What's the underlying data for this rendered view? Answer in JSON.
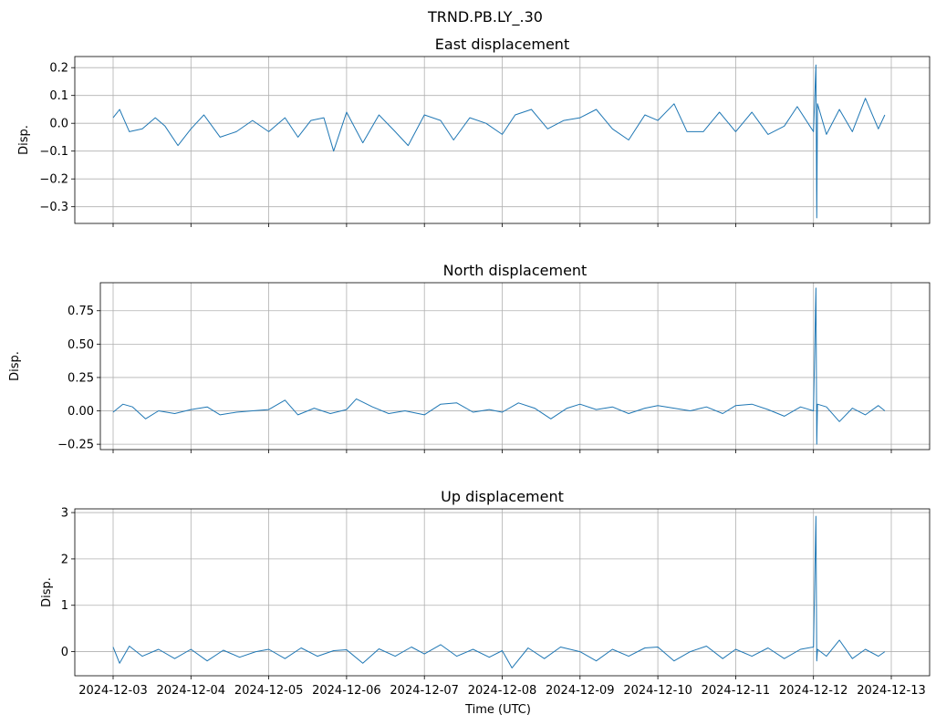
{
  "figure": {
    "suptitle": "TRND.PB.LY_.30",
    "xlabel": "Time (UTC)"
  },
  "colors": {
    "series": "#1f77b4",
    "grid": "#b0b0b0"
  },
  "chart_data": [
    {
      "type": "line",
      "title": "East displacement",
      "ylabel": "Disp.",
      "grid": true,
      "sharex": true,
      "x_tick_labels": [],
      "xlim": [
        "2024-12-03",
        "2024-12-13"
      ],
      "ylim": [
        -0.36,
        0.24
      ],
      "y_ticks": [
        0.2,
        0.1,
        0.0,
        -0.1,
        -0.2,
        -0.3
      ],
      "y_tick_labels": [
        "0.2",
        "0.1",
        "0.0",
        "−0.1",
        "−0.2",
        "−0.3"
      ],
      "series": [
        {
          "x": [
            "2024-12-03 00:00",
            "2024-12-03 02:00",
            "2024-12-03 05:00",
            "2024-12-03 09:00",
            "2024-12-03 13:00",
            "2024-12-03 16:00",
            "2024-12-03 20:00",
            "2024-12-04 00:00",
            "2024-12-04 04:00",
            "2024-12-04 09:00",
            "2024-12-04 14:00",
            "2024-12-04 19:00",
            "2024-12-05 00:00",
            "2024-12-05 05:00",
            "2024-12-05 09:00",
            "2024-12-05 13:00",
            "2024-12-05 17:00",
            "2024-12-05 20:00",
            "2024-12-06 00:00",
            "2024-12-06 05:00",
            "2024-12-06 10:00",
            "2024-12-06 15:00",
            "2024-12-06 19:00",
            "2024-12-07 00:00",
            "2024-12-07 05:00",
            "2024-12-07 09:00",
            "2024-12-07 14:00",
            "2024-12-07 19:00",
            "2024-12-08 00:00",
            "2024-12-08 04:00",
            "2024-12-08 09:00",
            "2024-12-08 14:00",
            "2024-12-08 19:00",
            "2024-12-09 00:00",
            "2024-12-09 05:00",
            "2024-12-09 10:00",
            "2024-12-09 15:00",
            "2024-12-09 20:00",
            "2024-12-10 00:00",
            "2024-12-10 05:00",
            "2024-12-10 09:00",
            "2024-12-10 14:00",
            "2024-12-10 19:00",
            "2024-12-11 00:00",
            "2024-12-11 05:00",
            "2024-12-11 10:00",
            "2024-12-11 15:00",
            "2024-12-11 19:00",
            "2024-12-12 00:00",
            "2024-12-12 00:45",
            "2024-12-12 01:00",
            "2024-12-12 01:15",
            "2024-12-12 04:00",
            "2024-12-12 08:00",
            "2024-12-12 12:00",
            "2024-12-12 16:00",
            "2024-12-12 20:00",
            "2024-12-12 22:00"
          ],
          "y": [
            0.02,
            0.05,
            -0.03,
            -0.02,
            0.02,
            -0.01,
            -0.08,
            -0.02,
            0.03,
            -0.05,
            -0.03,
            0.01,
            -0.03,
            0.02,
            -0.05,
            0.01,
            0.02,
            -0.1,
            0.04,
            -0.07,
            0.03,
            -0.03,
            -0.08,
            0.03,
            0.01,
            -0.06,
            0.02,
            0.0,
            -0.04,
            0.03,
            0.05,
            -0.02,
            0.01,
            0.02,
            0.05,
            -0.02,
            -0.06,
            0.03,
            0.01,
            0.07,
            -0.03,
            -0.03,
            0.04,
            -0.03,
            0.04,
            -0.04,
            -0.01,
            0.06,
            -0.03,
            0.21,
            -0.34,
            0.07,
            -0.04,
            0.05,
            -0.03,
            0.09,
            -0.02,
            0.03
          ]
        }
      ]
    },
    {
      "type": "line",
      "title": "North displacement",
      "ylabel": "Disp.",
      "grid": true,
      "sharex": true,
      "x_tick_labels": [],
      "xlim": [
        "2024-12-03",
        "2024-12-13"
      ],
      "ylim": [
        -0.29,
        0.96
      ],
      "y_ticks": [
        0.75,
        0.5,
        0.25,
        0.0,
        -0.25
      ],
      "y_tick_labels": [
        "0.75",
        "0.50",
        "0.25",
        "0.00",
        "−0.25"
      ],
      "series": [
        {
          "x": [
            "2024-12-03 00:00",
            "2024-12-03 03:00",
            "2024-12-03 06:00",
            "2024-12-03 10:00",
            "2024-12-03 14:00",
            "2024-12-03 19:00",
            "2024-12-04 00:00",
            "2024-12-04 05:00",
            "2024-12-04 09:00",
            "2024-12-04 14:00",
            "2024-12-04 19:00",
            "2024-12-05 00:00",
            "2024-12-05 05:00",
            "2024-12-05 09:00",
            "2024-12-05 14:00",
            "2024-12-05 19:00",
            "2024-12-06 00:00",
            "2024-12-06 03:00",
            "2024-12-06 08:00",
            "2024-12-06 13:00",
            "2024-12-06 18:00",
            "2024-12-07 00:00",
            "2024-12-07 05:00",
            "2024-12-07 10:00",
            "2024-12-07 15:00",
            "2024-12-07 20:00",
            "2024-12-08 00:00",
            "2024-12-08 05:00",
            "2024-12-08 10:00",
            "2024-12-08 15:00",
            "2024-12-08 20:00",
            "2024-12-09 00:00",
            "2024-12-09 05:00",
            "2024-12-09 10:00",
            "2024-12-09 15:00",
            "2024-12-09 20:00",
            "2024-12-10 00:00",
            "2024-12-10 05:00",
            "2024-12-10 10:00",
            "2024-12-10 15:00",
            "2024-12-10 20:00",
            "2024-12-11 00:00",
            "2024-12-11 05:00",
            "2024-12-11 10:00",
            "2024-12-11 15:00",
            "2024-12-11 20:00",
            "2024-12-12 00:00",
            "2024-12-12 00:45",
            "2024-12-12 01:00",
            "2024-12-12 01:15",
            "2024-12-12 04:00",
            "2024-12-12 08:00",
            "2024-12-12 12:00",
            "2024-12-12 16:00",
            "2024-12-12 20:00",
            "2024-12-12 22:00"
          ],
          "y": [
            -0.01,
            0.05,
            0.03,
            -0.06,
            0.0,
            -0.02,
            0.01,
            0.03,
            -0.03,
            -0.01,
            0.0,
            0.01,
            0.08,
            -0.03,
            0.02,
            -0.02,
            0.01,
            0.09,
            0.03,
            -0.02,
            0.0,
            -0.03,
            0.05,
            0.06,
            -0.01,
            0.01,
            -0.01,
            0.06,
            0.02,
            -0.06,
            0.02,
            0.05,
            0.01,
            0.03,
            -0.02,
            0.02,
            0.04,
            0.02,
            0.0,
            0.03,
            -0.02,
            0.04,
            0.05,
            0.01,
            -0.04,
            0.03,
            0.0,
            0.92,
            -0.25,
            0.05,
            0.03,
            -0.08,
            0.02,
            -0.03,
            0.04,
            0.0
          ]
        }
      ]
    },
    {
      "type": "line",
      "title": "Up displacement",
      "ylabel": "Disp.",
      "grid": true,
      "sharex": true,
      "x_tick_labels": [
        "2024-12-03",
        "2024-12-04",
        "2024-12-05",
        "2024-12-06",
        "2024-12-07",
        "2024-12-08",
        "2024-12-09",
        "2024-12-10",
        "2024-12-11",
        "2024-12-12",
        "2024-12-13"
      ],
      "xlim": [
        "2024-12-03",
        "2024-12-13"
      ],
      "ylim": [
        -0.52,
        3.08
      ],
      "y_ticks": [
        3,
        2,
        1,
        0
      ],
      "y_tick_labels": [
        "3",
        "2",
        "1",
        "0"
      ],
      "series": [
        {
          "x": [
            "2024-12-03 00:00",
            "2024-12-03 02:00",
            "2024-12-03 05:00",
            "2024-12-03 09:00",
            "2024-12-03 14:00",
            "2024-12-03 19:00",
            "2024-12-04 00:00",
            "2024-12-04 05:00",
            "2024-12-04 10:00",
            "2024-12-04 15:00",
            "2024-12-04 20:00",
            "2024-12-05 00:00",
            "2024-12-05 05:00",
            "2024-12-05 10:00",
            "2024-12-05 15:00",
            "2024-12-05 20:00",
            "2024-12-06 00:00",
            "2024-12-06 05:00",
            "2024-12-06 10:00",
            "2024-12-06 15:00",
            "2024-12-06 20:00",
            "2024-12-07 00:00",
            "2024-12-07 05:00",
            "2024-12-07 10:00",
            "2024-12-07 15:00",
            "2024-12-07 20:00",
            "2024-12-08 00:00",
            "2024-12-08 03:00",
            "2024-12-08 08:00",
            "2024-12-08 13:00",
            "2024-12-08 18:00",
            "2024-12-09 00:00",
            "2024-12-09 05:00",
            "2024-12-09 10:00",
            "2024-12-09 15:00",
            "2024-12-09 20:00",
            "2024-12-10 00:00",
            "2024-12-10 05:00",
            "2024-12-10 10:00",
            "2024-12-10 15:00",
            "2024-12-10 20:00",
            "2024-12-11 00:00",
            "2024-12-11 05:00",
            "2024-12-11 10:00",
            "2024-12-11 15:00",
            "2024-12-11 20:00",
            "2024-12-12 00:00",
            "2024-12-12 00:45",
            "2024-12-12 01:00",
            "2024-12-12 01:15",
            "2024-12-12 04:00",
            "2024-12-12 08:00",
            "2024-12-12 12:00",
            "2024-12-12 16:00",
            "2024-12-12 20:00",
            "2024-12-12 22:00"
          ],
          "y": [
            0.1,
            -0.25,
            0.12,
            -0.1,
            0.05,
            -0.15,
            0.05,
            -0.2,
            0.03,
            -0.12,
            0.0,
            0.05,
            -0.15,
            0.08,
            -0.1,
            0.02,
            0.04,
            -0.25,
            0.06,
            -0.1,
            0.1,
            -0.05,
            0.15,
            -0.1,
            0.05,
            -0.12,
            0.02,
            -0.35,
            0.08,
            -0.15,
            0.1,
            0.0,
            -0.2,
            0.05,
            -0.1,
            0.08,
            0.1,
            -0.2,
            0.0,
            0.12,
            -0.15,
            0.05,
            -0.1,
            0.08,
            -0.15,
            0.05,
            0.1,
            2.92,
            -0.2,
            0.05,
            -0.1,
            0.25,
            -0.15,
            0.05,
            -0.1,
            0.0
          ]
        }
      ]
    }
  ]
}
